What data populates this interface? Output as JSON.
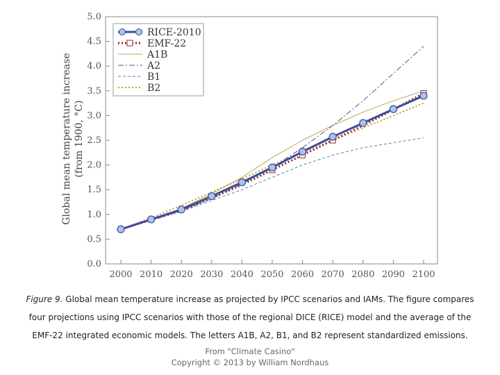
{
  "chart_data": {
    "type": "line",
    "title": "",
    "xlabel": "",
    "ylabel": "Global mean temperature increase",
    "ylabel_unit": "(from 1900, °C)",
    "xlim": [
      2000,
      2100
    ],
    "ylim": [
      0.0,
      5.0
    ],
    "x_ticks": [
      "2000",
      "2010",
      "2020",
      "2030",
      "2040",
      "2050",
      "2060",
      "2070",
      "2080",
      "2090",
      "2100"
    ],
    "y_ticks": [
      "0.0",
      "0.5",
      "1.0",
      "1.5",
      "2.0",
      "2.5",
      "3.0",
      "3.5",
      "4.0",
      "4.5",
      "5.0"
    ],
    "grid": false,
    "legend_position": "top-left",
    "series": [
      {
        "name": "RICE-2010",
        "color": "#3b4a9c",
        "style": "solid-thick-circle",
        "x": [
          2000,
          2010,
          2020,
          2030,
          2040,
          2050,
          2060,
          2070,
          2080,
          2090,
          2100
        ],
        "values": [
          0.7,
          0.9,
          1.1,
          1.37,
          1.65,
          1.95,
          2.27,
          2.57,
          2.85,
          3.13,
          3.4
        ]
      },
      {
        "name": "EMF-22",
        "color": "#8b2b2b",
        "style": "dotted-square",
        "x": [
          2000,
          2010,
          2020,
          2030,
          2040,
          2050,
          2060,
          2070,
          2080,
          2090,
          2100
        ],
        "values": [
          0.7,
          0.89,
          1.08,
          1.33,
          1.6,
          1.9,
          2.2,
          2.5,
          2.8,
          3.12,
          3.45
        ]
      },
      {
        "name": "A1B",
        "color": "#b8a35a",
        "style": "thin-solid",
        "x": [
          2000,
          2010,
          2020,
          2030,
          2040,
          2050,
          2060,
          2070,
          2080,
          2090,
          2100
        ],
        "values": [
          0.7,
          0.9,
          1.12,
          1.42,
          1.75,
          2.15,
          2.5,
          2.8,
          3.07,
          3.3,
          3.5
        ]
      },
      {
        "name": "A2",
        "color": "#555577",
        "style": "dash-dot",
        "x": [
          2000,
          2010,
          2020,
          2030,
          2040,
          2050,
          2060,
          2070,
          2080,
          2090,
          2100
        ],
        "values": [
          0.7,
          0.89,
          1.08,
          1.32,
          1.62,
          1.95,
          2.35,
          2.8,
          3.3,
          3.85,
          4.4
        ]
      },
      {
        "name": "B1",
        "color": "#4a8bb5",
        "style": "dashed",
        "x": [
          2000,
          2010,
          2020,
          2030,
          2040,
          2050,
          2060,
          2070,
          2080,
          2090,
          2100
        ],
        "values": [
          0.7,
          0.88,
          1.06,
          1.28,
          1.5,
          1.75,
          2.0,
          2.2,
          2.35,
          2.45,
          2.55
        ]
      },
      {
        "name": "B2",
        "color": "#c99a2e",
        "style": "dotted",
        "x": [
          2000,
          2010,
          2020,
          2030,
          2040,
          2050,
          2060,
          2070,
          2080,
          2090,
          2100
        ],
        "values": [
          0.7,
          0.93,
          1.18,
          1.45,
          1.72,
          2.0,
          2.25,
          2.5,
          2.75,
          3.0,
          3.25
        ]
      }
    ]
  },
  "caption": {
    "figure_label": "Figure 9.",
    "text": " Global mean temperature increase as projected by IPCC scenarios and IAMs. The figure compares four projections using IPCC scenarios with those of the regional DICE (RICE) model and the average of the EMF-22 integrated economic models. The letters A1B, A2, B1, and B2 represent standardized emissions."
  },
  "credit": {
    "source": "From \"Climate Casino\"",
    "copyright": "Copyright © 2013 by William Nordhaus"
  }
}
